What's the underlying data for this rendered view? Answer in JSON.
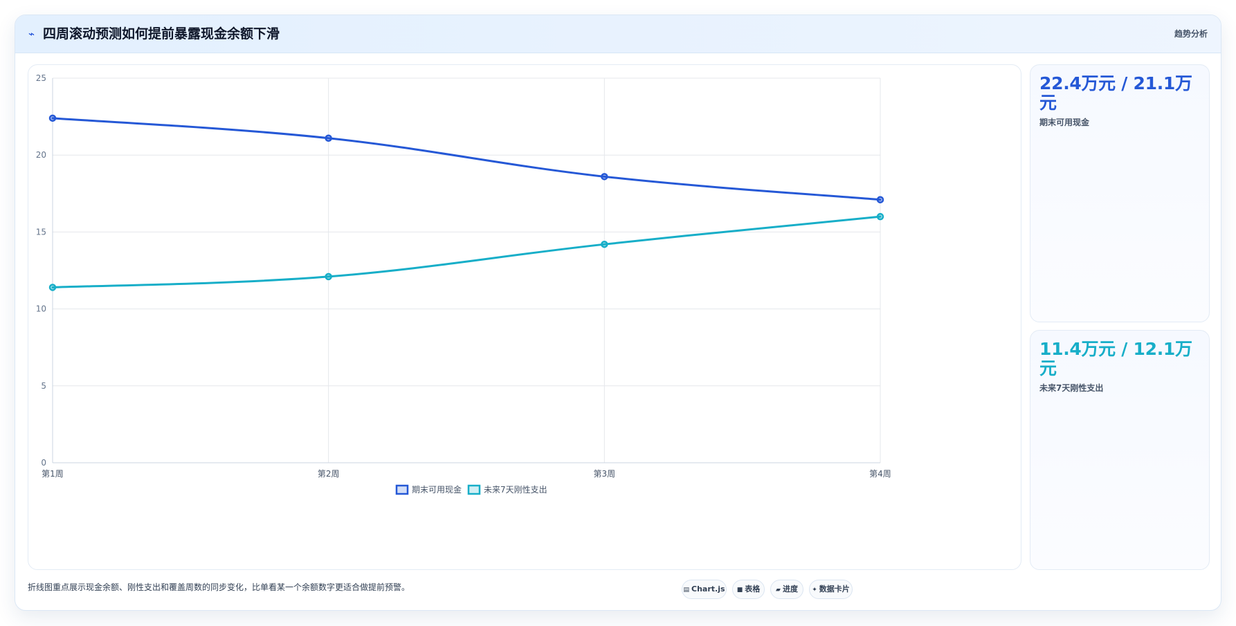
{
  "header": {
    "icon": "trend-line-icon",
    "title": "四周滚动预测如何提前暴露现金余额下滑",
    "tag": "趋势分析"
  },
  "chart_data": {
    "type": "line",
    "title": "",
    "xlabel": "",
    "ylabel": "",
    "categories": [
      "第1周",
      "第2周",
      "第3周",
      "第4周"
    ],
    "ylim": [
      0,
      25
    ],
    "yticks": [
      0,
      5,
      10,
      15,
      20,
      25
    ],
    "grid": true,
    "legend_position": "bottom",
    "series": [
      {
        "name": "期末可用现金",
        "values": [
          22.4,
          21.1,
          18.6,
          17.1
        ],
        "color": "#2558d6"
      },
      {
        "name": "未来7天刚性支出",
        "values": [
          11.4,
          12.1,
          14.2,
          16.0
        ],
        "color": "#17aec8"
      }
    ]
  },
  "kpis": [
    {
      "value": "22.4万元 / 21.1万元",
      "label": "期末可用现金"
    },
    {
      "value": "11.4万元 / 12.1万元",
      "label": "未来7天刚性支出"
    }
  ],
  "footnote": "折线图重点展示现金余额、刚性支出和覆盖周数的同步变化，比单看某一个余额数字更适合做提前预警。",
  "chips": [
    {
      "glyph": "▤",
      "label": "Chart.js"
    },
    {
      "glyph": "■",
      "label": "表格"
    },
    {
      "glyph": "▰",
      "label": "进度"
    },
    {
      "glyph": "✦",
      "label": "数据卡片"
    }
  ]
}
